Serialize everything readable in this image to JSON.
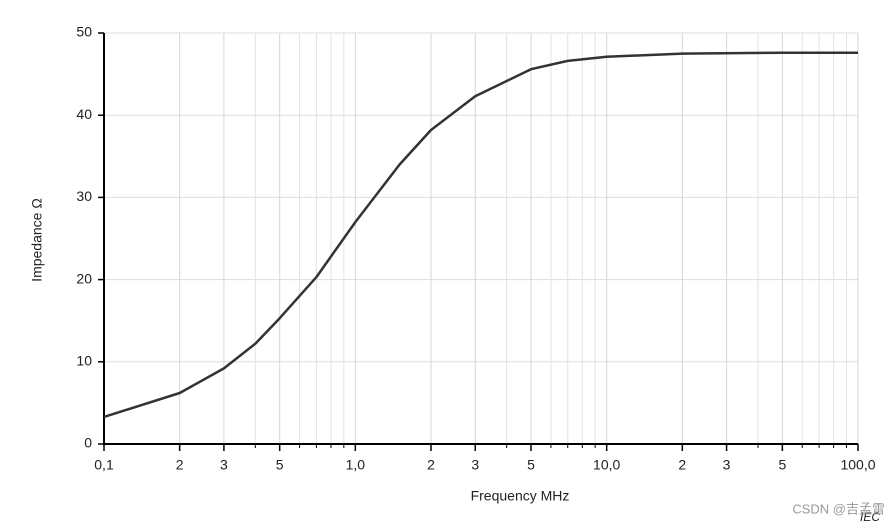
{
  "chart_data": {
    "type": "line",
    "x_label": "Frequency    MHz",
    "y_label": "Impedance   Ω",
    "annotations": [
      "IEC",
      "CSDN @吉孟雷"
    ],
    "x_log": true,
    "grid": true,
    "xlim": [
      0.1,
      100
    ],
    "ylim": [
      0,
      50
    ],
    "xticks": [
      {
        "value": 0.1,
        "label": "0,1"
      },
      {
        "value": 0.2,
        "label": "2"
      },
      {
        "value": 0.3,
        "label": "3"
      },
      {
        "value": 0.5,
        "label": "5"
      },
      {
        "value": 1,
        "label": "1,0"
      },
      2,
      3,
      5,
      {
        "value": 10,
        "label": "10,0"
      },
      {
        "value": 20,
        "label": "2"
      },
      {
        "value": 30,
        "label": "3"
      },
      {
        "value": 50,
        "label": "5"
      },
      {
        "value": 100,
        "label": "100,0"
      }
    ],
    "xminor": [
      0.4,
      0.6,
      0.7,
      0.8,
      0.9,
      4,
      6,
      7,
      8,
      9,
      40,
      60,
      70,
      80,
      90
    ],
    "yticks": [
      0,
      10,
      20,
      30,
      40,
      50
    ],
    "series": [
      {
        "name": "Impedance",
        "color": "#333333",
        "x": [
          0.1,
          0.2,
          0.3,
          0.4,
          0.5,
          0.7,
          1,
          1.5,
          2,
          3,
          5,
          7,
          10,
          20,
          50,
          100
        ],
        "values": [
          3.3,
          6.2,
          9.2,
          12.2,
          15.3,
          20.3,
          27,
          34,
          38.2,
          42.3,
          45.6,
          46.6,
          47.1,
          47.5,
          47.6,
          47.6
        ]
      }
    ]
  }
}
